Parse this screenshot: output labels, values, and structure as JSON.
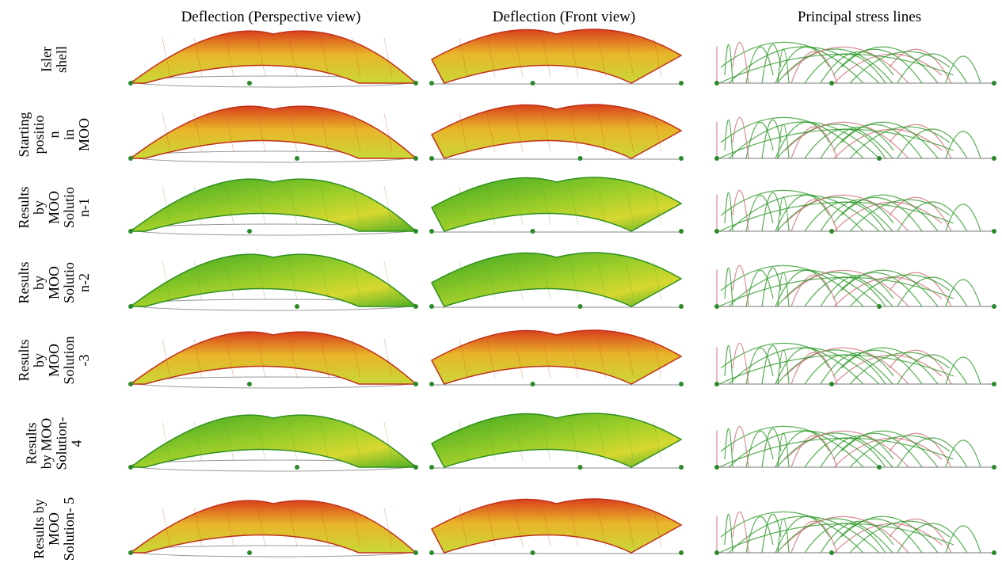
{
  "columns": [
    "Deflection (Perspective view)",
    "Deflection (Front view)",
    "Principal stress lines"
  ],
  "rows": [
    {
      "lines": [
        "Isler",
        "shell"
      ]
    },
    {
      "lines": [
        "Starting",
        "positio",
        "n",
        "in",
        "MOO"
      ]
    },
    {
      "lines": [
        "Results",
        "by",
        "MOO",
        "Solutio",
        "n-1"
      ]
    },
    {
      "lines": [
        "Results",
        "by",
        "MOO",
        "Solutio",
        "n-2"
      ]
    },
    {
      "lines": [
        "Results",
        "by",
        "MOO",
        "Solution",
        "-3"
      ]
    },
    {
      "lines": [
        "Results",
        "by MOO",
        "Solution-",
        "4"
      ]
    },
    {
      "lines": [
        "Results by",
        "MOO",
        "Solution- 5"
      ]
    }
  ]
}
